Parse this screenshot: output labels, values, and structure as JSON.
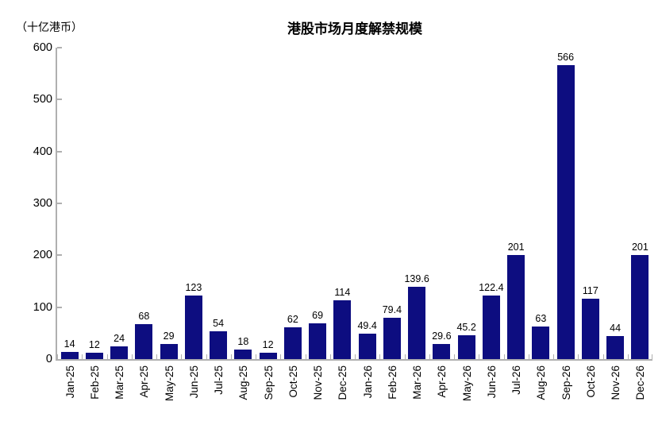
{
  "chart_data": {
    "type": "bar",
    "title": "港股市场月度解禁规模",
    "unit_label": "（十亿港币）",
    "categories": [
      "Jan-25",
      "Feb-25",
      "Mar-25",
      "Apr-25",
      "May-25",
      "Jun-25",
      "Jul-25",
      "Aug-25",
      "Sep-25",
      "Oct-25",
      "Nov-25",
      "Dec-25",
      "Jan-26",
      "Feb-26",
      "Mar-26",
      "Apr-26",
      "May-26",
      "Jun-26",
      "Jul-26",
      "Aug-26",
      "Sep-26",
      "Oct-26",
      "Nov-26",
      "Dec-26"
    ],
    "values": [
      14,
      12,
      24,
      68,
      29,
      123,
      54,
      18,
      12,
      62,
      69,
      114,
      49.4,
      79.4,
      139.6,
      29.6,
      45.2,
      122.4,
      201,
      63,
      566,
      117,
      44,
      201
    ],
    "data_labels": [
      "14",
      "12",
      "24",
      "68",
      "29",
      "123",
      "54",
      "18",
      "12",
      "62",
      "69",
      "114",
      "49.4",
      "79.4",
      "139.6",
      "29.6",
      "45.2",
      "122.4",
      "201",
      "63",
      "566",
      "117",
      "44",
      "201"
    ],
    "ylim": [
      0,
      600
    ],
    "yticks": [
      0,
      100,
      200,
      300,
      400,
      500,
      600
    ],
    "xlabel": "",
    "ylabel": "",
    "grid": false,
    "legend": "none",
    "bar_color": "#0d0d80",
    "axis_color": "#b0b0b0",
    "text_color": "#000000"
  }
}
